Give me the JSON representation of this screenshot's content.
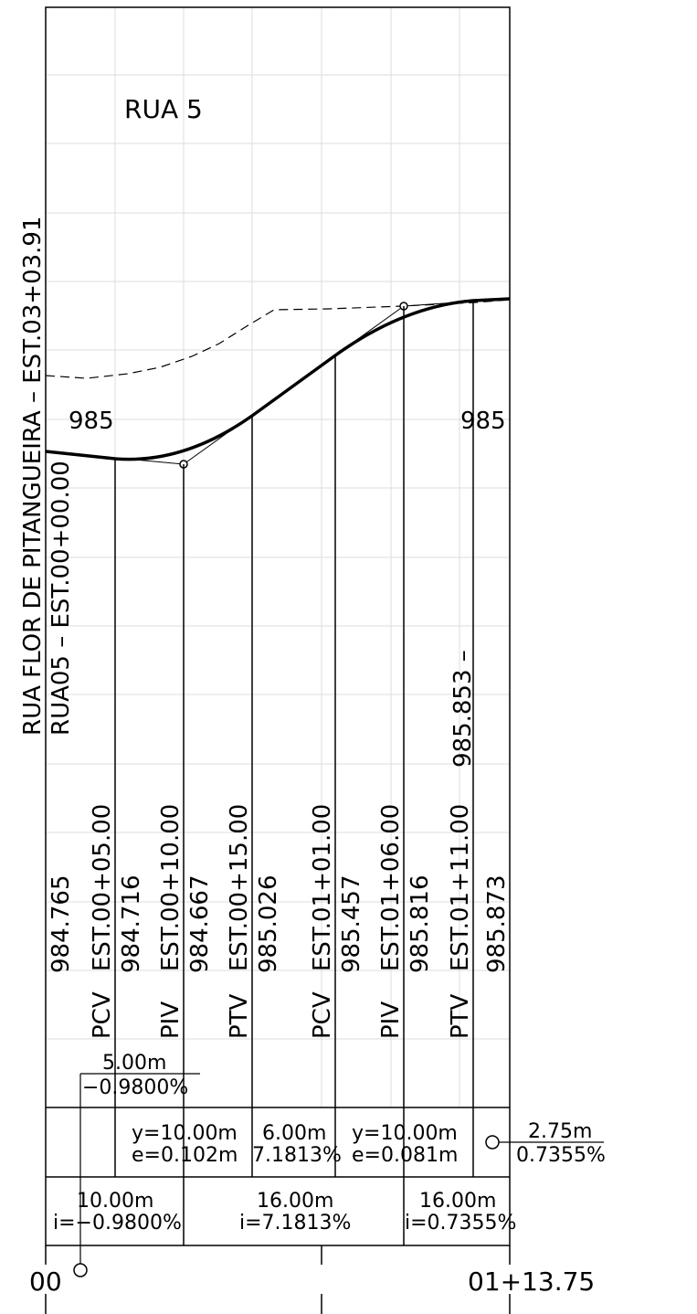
{
  "profile": {
    "title": "RUA  5",
    "street_label": "RUA FLOR DE PITANGUEIRA  –  EST.03+03.91",
    "start_label": "RUA05  –  EST.00+00.00",
    "end_label": "985.853  –",
    "elev_left": "985",
    "elev_right": "985",
    "first_elevation": "984.765",
    "points": [
      {
        "type": "PCV",
        "station": "EST.00+05.00",
        "elevation": "984.716"
      },
      {
        "type": "PIV",
        "station": "EST.00+10.00",
        "elevation": "984.667"
      },
      {
        "type": "PTV",
        "station": "EST.00+15.00",
        "elevation": "985.026"
      },
      {
        "type": "PCV",
        "station": "EST.01+01.00",
        "elevation": "985.457"
      },
      {
        "type": "PIV",
        "station": "EST.01+06.00",
        "elevation": "985.816"
      },
      {
        "type": "PTV",
        "station": "EST.01+11.00",
        "elevation": "985.873"
      }
    ]
  },
  "start_grade": {
    "length": "5.00m",
    "grade": "−0.9800%"
  },
  "curve_band": {
    "curve1": {
      "y": "y=10.00m",
      "e": "e=0.102m"
    },
    "tangent": {
      "length": "6.00m",
      "grade": "7.1813%"
    },
    "curve2": {
      "y": "y=10.00m",
      "e": "e=0.081m"
    },
    "end": {
      "length": "2.75m",
      "grade": "0.7355%"
    }
  },
  "grade_band": [
    {
      "length": "10.00m",
      "grade": "i=−0.9800%"
    },
    {
      "length": "16.00m",
      "grade": "i=7.1813%"
    },
    {
      "length": "16.00m",
      "grade": "i=0.7355%"
    }
  ],
  "stations": {
    "start": "00",
    "end": "01+13.75"
  }
}
